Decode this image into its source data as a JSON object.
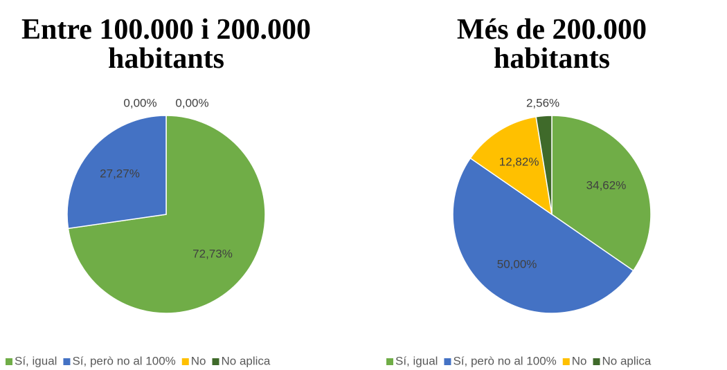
{
  "chart_data": [
    {
      "type": "pie",
      "title": [
        "Entre 100.000 i 200.000",
        "habitants"
      ],
      "categories": [
        "Sí, igual",
        "Sí, però no al 100%",
        "No",
        "No aplica"
      ],
      "values": [
        72.73,
        27.27,
        0,
        0
      ],
      "value_labels": [
        "72,73%",
        "27,27%",
        "0,00%",
        "0,00%"
      ],
      "colors": [
        "#70ad47",
        "#4472c4",
        "#ffc000",
        "#3f6a2a"
      ],
      "legend": "bottom"
    },
    {
      "type": "pie",
      "title": [
        "Més de 200.000",
        "habitants"
      ],
      "categories": [
        "Sí, igual",
        "Sí, però no al 100%",
        "No",
        "No aplica"
      ],
      "values": [
        34.62,
        50.0,
        12.82,
        2.56
      ],
      "value_labels": [
        "34,62%",
        "50,00%",
        "12,82%",
        "2,56%"
      ],
      "colors": [
        "#70ad47",
        "#4472c4",
        "#ffc000",
        "#3f6a2a"
      ],
      "legend": "bottom"
    }
  ]
}
